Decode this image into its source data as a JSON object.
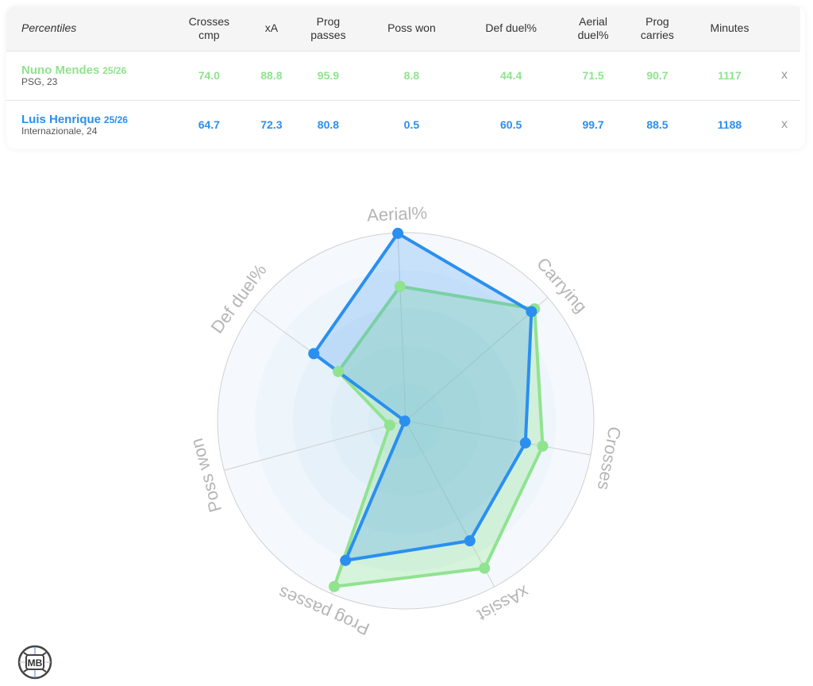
{
  "table": {
    "header_label": "Percentiles",
    "columns": [
      [
        "Crosses",
        "cmp"
      ],
      [
        "xA",
        ""
      ],
      [
        "Prog",
        "passes"
      ],
      [
        "Poss won",
        ""
      ],
      [
        "Def duel%",
        ""
      ],
      [
        "Aerial",
        "duel%"
      ],
      [
        "Prog",
        "carries"
      ],
      [
        "Minutes",
        ""
      ]
    ],
    "players": [
      {
        "name": "Nuno Mendes",
        "season": "25/26",
        "sub": "PSG, 23",
        "color": "#90e38f",
        "values": [
          "74.0",
          "88.8",
          "95.9",
          "8.8",
          "44.4",
          "71.5",
          "90.7",
          "1117"
        ],
        "remove": "x"
      },
      {
        "name": "Luis Henrique",
        "season": "25/26",
        "sub": "Internazionale, 24",
        "color": "#2a8ff0",
        "values": [
          "64.7",
          "72.3",
          "80.8",
          "0.5",
          "60.5",
          "99.7",
          "88.5",
          "1188"
        ],
        "remove": "x"
      }
    ]
  },
  "chart_data": {
    "type": "radar",
    "axes": [
      "Aerial%",
      "Carrying",
      "Crosses",
      "xAssist",
      "Prog passes",
      "Poss won",
      "Def duel%"
    ],
    "range": [
      0,
      100
    ],
    "series": [
      {
        "name": "Nuno Mendes",
        "color": "#90e38f",
        "values": [
          71.5,
          90.7,
          74.0,
          88.8,
          95.9,
          8.8,
          44.4
        ]
      },
      {
        "name": "Luis Henrique",
        "color": "#2a8ff0",
        "values": [
          99.7,
          88.5,
          64.7,
          72.3,
          80.8,
          0.5,
          60.5
        ]
      }
    ]
  },
  "logo": {
    "text": "MB"
  }
}
